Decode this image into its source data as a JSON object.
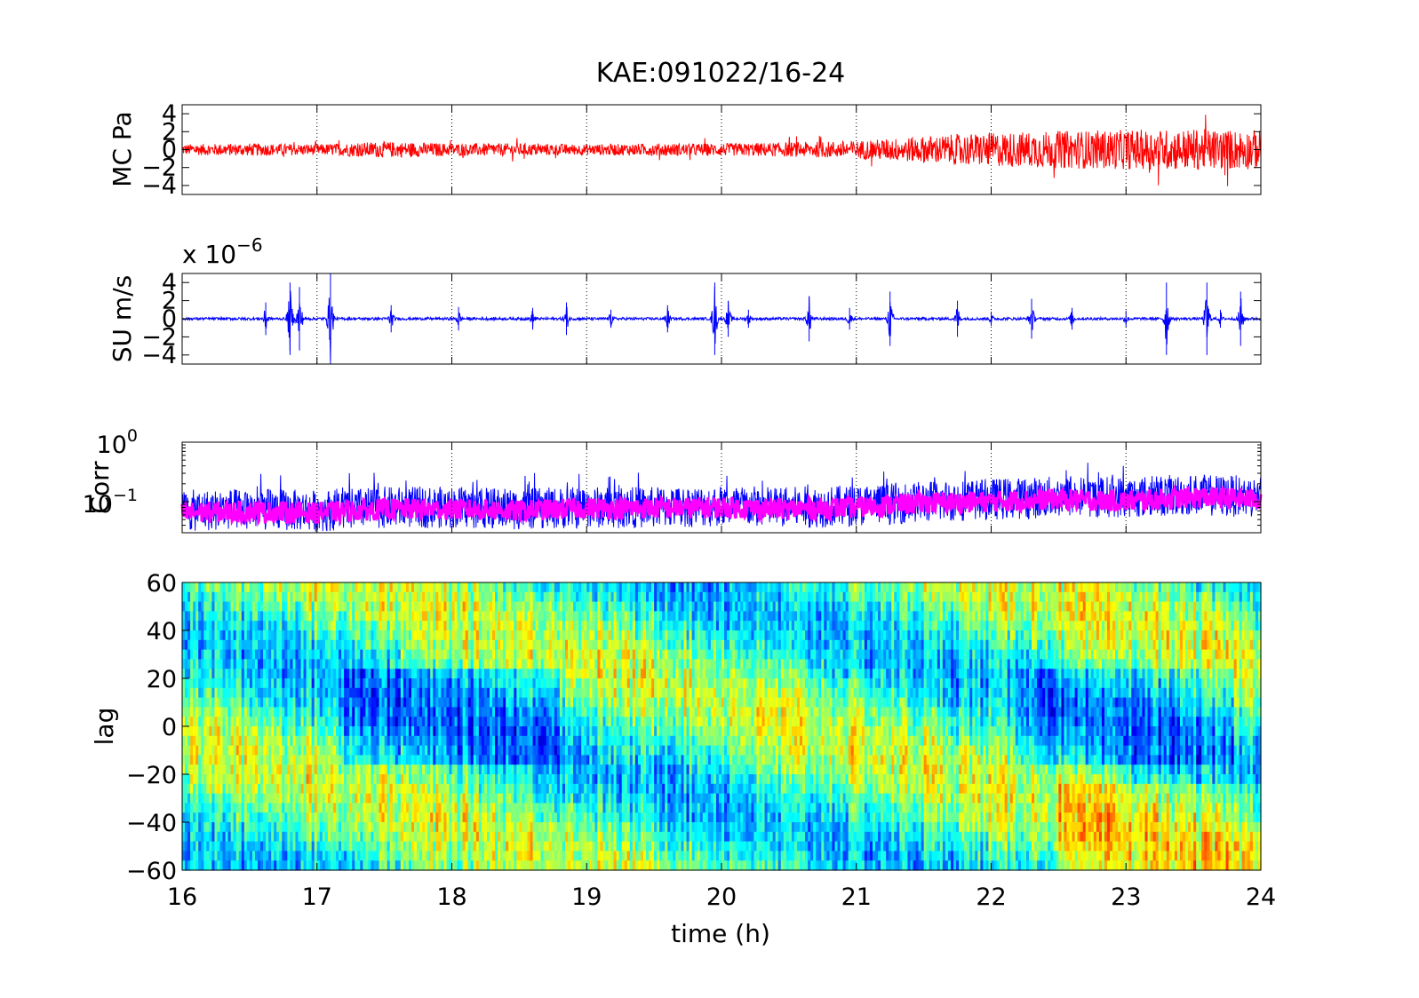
{
  "chart_data": [
    {
      "type": "line",
      "title": "KAE:091022/16-24",
      "ylabel": "MC Pa",
      "xlim": [
        16,
        24
      ],
      "ylim": [
        -5,
        5
      ],
      "yticks": [
        -4,
        -2,
        0,
        2,
        4
      ],
      "ytick_labels": [
        "−4",
        "−2",
        "0",
        "2",
        "4"
      ],
      "grid": "vertical dotted at each hour",
      "series": [
        {
          "color": "#ff0000",
          "x": [
            16,
            16.5,
            17,
            17.5,
            18,
            18.5,
            19,
            19.5,
            20,
            20.5,
            21,
            21.5,
            22,
            22.5,
            23,
            23.5,
            24
          ],
          "envelope": [
            0.6,
            0.7,
            0.6,
            0.9,
            0.7,
            0.7,
            0.6,
            0.7,
            0.7,
            0.8,
            1.0,
            1.5,
            1.9,
            2.1,
            2.2,
            2.3,
            2.2
          ]
        }
      ]
    },
    {
      "type": "line",
      "ylabel": "SU m/s",
      "exponent_label": "x 10",
      "exponent_power": "−6",
      "xlim": [
        16,
        24
      ],
      "ylim": [
        -5,
        5
      ],
      "yticks": [
        -4,
        -2,
        0,
        2,
        4
      ],
      "ytick_labels": [
        "−4",
        "−2",
        "0",
        "2",
        "4"
      ],
      "grid": "vertical dotted at each hour",
      "series": [
        {
          "color": "#0000ff",
          "baseline_amplitude": 0.15,
          "spikes_x": [
            16.62,
            16.8,
            16.87,
            17.1,
            17.55,
            18.05,
            18.6,
            18.85,
            19.18,
            19.6,
            19.95,
            20.05,
            20.2,
            20.65,
            20.95,
            21.25,
            21.75,
            22.0,
            22.3,
            22.6,
            23.0,
            23.3,
            23.6,
            23.7,
            23.85
          ],
          "spikes_amp": [
            1.8,
            4.0,
            3.5,
            5.0,
            1.5,
            1.3,
            1.2,
            1.8,
            1.0,
            1.5,
            4.0,
            2.0,
            1.0,
            2.5,
            1.2,
            3.0,
            2.0,
            0.8,
            2.2,
            1.2,
            0.9,
            4.0,
            4.0,
            1.0,
            3.0
          ]
        }
      ]
    },
    {
      "type": "line",
      "ylabel": "Corr",
      "yscale": "log",
      "xlim": [
        16,
        24
      ],
      "ylim": [
        0.03,
        1
      ],
      "ytick_labels": [
        {
          "base": "10",
          "exp": "0",
          "value": 1
        },
        {
          "base": "10",
          "exp": "−1",
          "value": 0.1
        }
      ],
      "grid": "vertical dotted at each hour",
      "series": [
        {
          "color": "#0000ff",
          "x": [
            16,
            16.5,
            17,
            17.5,
            18,
            18.5,
            19,
            19.5,
            20,
            20.5,
            21,
            21.5,
            22,
            22.5,
            23,
            23.5,
            24
          ],
          "values": [
            0.07,
            0.075,
            0.07,
            0.08,
            0.08,
            0.075,
            0.08,
            0.08,
            0.085,
            0.08,
            0.085,
            0.1,
            0.11,
            0.12,
            0.12,
            0.13,
            0.12
          ]
        },
        {
          "color": "#ff00ff",
          "x": [
            16,
            16.5,
            17,
            17.5,
            18,
            18.5,
            19,
            19.5,
            20,
            20.5,
            21,
            21.5,
            22,
            22.5,
            23,
            23.5,
            24
          ],
          "values": [
            0.065,
            0.068,
            0.065,
            0.075,
            0.075,
            0.07,
            0.078,
            0.078,
            0.08,
            0.075,
            0.08,
            0.095,
            0.1,
            0.11,
            0.1,
            0.12,
            0.11
          ]
        }
      ]
    },
    {
      "type": "heatmap",
      "xlabel": "time (h)",
      "ylabel": "lag",
      "xlim": [
        16,
        24
      ],
      "ylim": [
        -60,
        60
      ],
      "xticks": [
        16,
        17,
        18,
        19,
        20,
        21,
        22,
        23,
        24
      ],
      "yticks": [
        -60,
        -40,
        -20,
        0,
        20,
        40,
        60
      ],
      "ytick_labels": [
        "−60",
        "−40",
        "−20",
        "0",
        "20",
        "40",
        "60"
      ],
      "colormap": "jet",
      "value_range": [
        -1,
        1
      ],
      "typical_values": [
        -0.2,
        0.2
      ]
    }
  ]
}
